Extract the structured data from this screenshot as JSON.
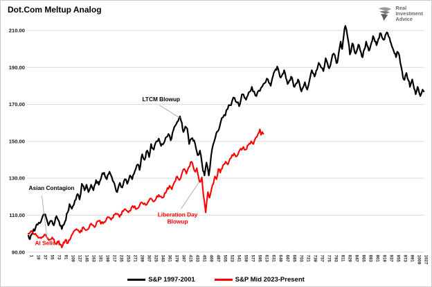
{
  "header": {
    "title": "Dot.Com Meltup Analog"
  },
  "logo": {
    "icon": "eagle-shield-icon",
    "line1": "Real",
    "line2": "Investment",
    "line3": "Advice"
  },
  "colors": {
    "background": "#ffffff",
    "grid": "#d9d9d9",
    "leader": "#a6a6a6",
    "series_1997": "#000000",
    "series_2023": "#fe0000",
    "logo_text": "#666666"
  },
  "chart_data": {
    "type": "line",
    "title": "Dot.Com Meltup Analog",
    "xlabel": "",
    "ylabel": "",
    "ylim": [
      90,
      210
    ],
    "grid": "horizontal",
    "legend_position": "bottom-center",
    "y_ticks": [
      {
        "value": 210,
        "label": "210.00"
      },
      {
        "value": 190,
        "label": "190.00"
      },
      {
        "value": 170,
        "label": "170.00"
      },
      {
        "value": 150,
        "label": "150.00"
      },
      {
        "value": 130,
        "label": "130.00"
      },
      {
        "value": 110,
        "label": "110.00"
      },
      {
        "value": 90,
        "label": "90.00"
      }
    ],
    "x_tick_labels": [
      "1",
      "19",
      "37",
      "55",
      "73",
      "91",
      "109",
      "127",
      "145",
      "163",
      "181",
      "199",
      "217",
      "235",
      "253",
      "271",
      "289",
      "307",
      "325",
      "343",
      "361",
      "379",
      "397",
      "415",
      "433",
      "451",
      "469",
      "487",
      "505",
      "523",
      "541",
      "559",
      "577",
      "595",
      "613",
      "631",
      "649",
      "667",
      "685",
      "703",
      "721",
      "739",
      "757",
      "775",
      "793",
      "811",
      "829",
      "847",
      "865",
      "883",
      "901",
      "919",
      "937",
      "955",
      "973",
      "991",
      "1009",
      "1027"
    ],
    "series": [
      {
        "name": "S&P 1997-2001",
        "color": "#000000",
        "stroke_width": 2.2,
        "jitter": 1.25,
        "seed": 7,
        "points": [
          [
            1,
            99
          ],
          [
            5,
            97
          ],
          [
            12,
            100.5
          ],
          [
            20,
            103.5
          ],
          [
            28,
            106
          ],
          [
            36,
            108
          ],
          [
            45,
            110.5
          ],
          [
            53,
            104.5
          ],
          [
            60,
            107
          ],
          [
            67,
            104.5
          ],
          [
            74,
            109.5
          ],
          [
            81,
            106.5
          ],
          [
            88,
            102.5
          ],
          [
            96,
            106.5
          ],
          [
            103,
            111.5
          ],
          [
            108,
            116
          ],
          [
            114,
            113.5
          ],
          [
            122,
            118
          ],
          [
            129,
            121.5
          ],
          [
            134,
            118.5
          ],
          [
            140,
            127
          ],
          [
            147,
            123.5
          ],
          [
            152,
            126.5
          ],
          [
            157,
            122.5
          ],
          [
            164,
            126.5
          ],
          [
            170,
            123.5
          ],
          [
            177,
            129
          ],
          [
            184,
            126.5
          ],
          [
            191,
            131
          ],
          [
            198,
            133
          ],
          [
            205,
            129.5
          ],
          [
            212,
            133.5
          ],
          [
            218,
            130.5
          ],
          [
            225,
            127
          ],
          [
            232,
            122.5
          ],
          [
            239,
            127.5
          ],
          [
            245,
            125
          ],
          [
            252,
            129.5
          ],
          [
            258,
            127
          ],
          [
            265,
            131.5
          ],
          [
            271,
            129.5
          ],
          [
            278,
            134
          ],
          [
            285,
            137.5
          ],
          [
            290,
            134.5
          ],
          [
            297,
            143
          ],
          [
            303,
            140
          ],
          [
            310,
            145
          ],
          [
            315,
            141.5
          ],
          [
            320,
            148.5
          ],
          [
            327,
            145.5
          ],
          [
            334,
            150
          ],
          [
            340,
            151.5
          ],
          [
            346,
            147.5
          ],
          [
            353,
            149
          ],
          [
            358,
            152
          ],
          [
            365,
            154
          ],
          [
            371,
            150.5
          ],
          [
            378,
            156
          ],
          [
            383,
            158.5
          ],
          [
            388,
            160.5
          ],
          [
            395,
            163.5
          ],
          [
            400,
            160
          ],
          [
            404,
            155
          ],
          [
            409,
            158
          ],
          [
            414,
            157
          ],
          [
            419,
            148.5
          ],
          [
            425,
            151.5
          ],
          [
            432,
            150.5
          ],
          [
            437,
            146
          ],
          [
            441,
            142.5
          ],
          [
            447,
            145
          ],
          [
            452,
            138.5
          ],
          [
            455,
            134
          ],
          [
            459,
            131.5
          ],
          [
            464,
            138.5
          ],
          [
            470,
            131.5
          ],
          [
            476,
            142
          ],
          [
            481,
            148
          ],
          [
            487,
            152
          ],
          [
            494,
            155.5
          ],
          [
            501,
            160.5
          ],
          [
            507,
            163
          ],
          [
            513,
            164
          ],
          [
            519,
            167.5
          ],
          [
            525,
            169.5
          ],
          [
            531,
            172
          ],
          [
            537,
            173.5
          ],
          [
            543,
            171
          ],
          [
            549,
            169
          ],
          [
            554,
            173
          ],
          [
            558,
            175.5
          ],
          [
            563,
            173.5
          ],
          [
            567,
            172.5
          ],
          [
            574,
            176.5
          ],
          [
            582,
            179.5
          ],
          [
            588,
            177
          ],
          [
            594,
            174.5
          ],
          [
            600,
            177.5
          ],
          [
            606,
            179
          ],
          [
            612,
            181
          ],
          [
            618,
            182
          ],
          [
            624,
            183.5
          ],
          [
            631,
            180
          ],
          [
            635,
            184
          ],
          [
            639,
            187
          ],
          [
            644,
            189
          ],
          [
            648,
            190.5
          ],
          [
            653,
            187
          ],
          [
            657,
            184.5
          ],
          [
            662,
            186.5
          ],
          [
            666,
            188.5
          ],
          [
            671,
            184
          ],
          [
            675,
            181
          ],
          [
            680,
            183
          ],
          [
            684,
            185
          ],
          [
            689,
            182
          ],
          [
            693,
            179.5
          ],
          [
            698,
            181.5
          ],
          [
            702,
            183.5
          ],
          [
            707,
            180
          ],
          [
            711,
            177
          ],
          [
            716,
            179.5
          ],
          [
            720,
            182
          ],
          [
            726,
            178
          ],
          [
            732,
            183
          ],
          [
            738,
            188.5
          ],
          [
            743,
            186.5
          ],
          [
            747,
            186
          ],
          [
            752,
            189
          ],
          [
            756,
            192.5
          ],
          [
            762,
            190
          ],
          [
            768,
            188
          ],
          [
            771,
            191
          ],
          [
            774,
            195
          ],
          [
            779,
            192
          ],
          [
            783,
            189.5
          ],
          [
            789,
            194
          ],
          [
            795,
            197.5
          ],
          [
            800,
            194.5
          ],
          [
            804,
            192.5
          ],
          [
            808,
            198
          ],
          [
            813,
            204
          ],
          [
            817,
            200
          ],
          [
            821,
            207.5
          ],
          [
            825,
            212.5
          ],
          [
            828,
            210.5
          ],
          [
            833,
            204
          ],
          [
            837,
            197
          ],
          [
            843,
            203
          ],
          [
            848,
            199.5
          ],
          [
            852,
            197.5
          ],
          [
            857,
            200.5
          ],
          [
            861,
            202
          ],
          [
            866,
            198
          ],
          [
            870,
            195.5
          ],
          [
            875,
            200
          ],
          [
            879,
            204
          ],
          [
            884,
            201
          ],
          [
            888,
            199.5
          ],
          [
            893,
            203.5
          ],
          [
            897,
            207
          ],
          [
            902,
            204
          ],
          [
            906,
            202
          ],
          [
            911,
            205.5
          ],
          [
            915,
            208.5
          ],
          [
            920,
            206.5
          ],
          [
            924,
            205
          ],
          [
            929,
            207.5
          ],
          [
            933,
            209
          ],
          [
            937,
            207
          ],
          [
            940,
            206
          ],
          [
            944,
            203
          ],
          [
            948,
            200.5
          ],
          [
            953,
            197.5
          ],
          [
            957,
            195.5
          ],
          [
            960,
            198.5
          ],
          [
            963,
            198
          ],
          [
            968,
            192.5
          ],
          [
            973,
            187.5
          ],
          [
            977,
            183.5
          ],
          [
            981,
            185.5
          ],
          [
            984,
            187
          ],
          [
            989,
            183
          ],
          [
            993,
            179.5
          ],
          [
            996,
            181.5
          ],
          [
            999,
            183.5
          ],
          [
            1004,
            178.5
          ],
          [
            1008,
            175.5
          ],
          [
            1011,
            177.5
          ],
          [
            1013,
            179.5
          ],
          [
            1017,
            176.5
          ],
          [
            1020,
            174.5
          ],
          [
            1023,
            176
          ],
          [
            1026,
            178
          ],
          [
            1029,
            177
          ]
        ]
      },
      {
        "name": "S&P Mid 2023-Present",
        "color": "#fe0000",
        "stroke_width": 2.1,
        "jitter": 0.95,
        "seed": 13,
        "points": [
          [
            1,
            100
          ],
          [
            10,
            101.5
          ],
          [
            22,
            99
          ],
          [
            34,
            97.5
          ],
          [
            43,
            99.5
          ],
          [
            54,
            96.5
          ],
          [
            63,
            98
          ],
          [
            72,
            94.5
          ],
          [
            80,
            96
          ],
          [
            88,
            92.5
          ],
          [
            97,
            96.5
          ],
          [
            104,
            95
          ],
          [
            113,
            99
          ],
          [
            126,
            102.5
          ],
          [
            135,
            100.5
          ],
          [
            144,
            103.5
          ],
          [
            153,
            102
          ],
          [
            164,
            105.5
          ],
          [
            173,
            103.5
          ],
          [
            184,
            107
          ],
          [
            195,
            105.5
          ],
          [
            207,
            109
          ],
          [
            216,
            107.5
          ],
          [
            228,
            111
          ],
          [
            238,
            109
          ],
          [
            250,
            113
          ],
          [
            261,
            111.5
          ],
          [
            272,
            115
          ],
          [
            283,
            113.5
          ],
          [
            295,
            117
          ],
          [
            306,
            115.5
          ],
          [
            317,
            119
          ],
          [
            328,
            117.5
          ],
          [
            340,
            121
          ],
          [
            351,
            119.5
          ],
          [
            360,
            123
          ],
          [
            368,
            126
          ],
          [
            374,
            124
          ],
          [
            381,
            128
          ],
          [
            388,
            131
          ],
          [
            394,
            129
          ],
          [
            400,
            132.5
          ],
          [
            407,
            135
          ],
          [
            412,
            132.5
          ],
          [
            418,
            136
          ],
          [
            425,
            139
          ],
          [
            430,
            136
          ],
          [
            435,
            133.5
          ],
          [
            439,
            135.5
          ],
          [
            444,
            130
          ],
          [
            448,
            128
          ],
          [
            452,
            130.5
          ],
          [
            456,
            121
          ],
          [
            459,
            117
          ],
          [
            462,
            111.5
          ],
          [
            465,
            118
          ],
          [
            468,
            122.5
          ],
          [
            472,
            119.5
          ],
          [
            477,
            124
          ],
          [
            482,
            127
          ],
          [
            486,
            131
          ],
          [
            490,
            129.5
          ],
          [
            495,
            135
          ],
          [
            500,
            133
          ],
          [
            507,
            137
          ],
          [
            514,
            139
          ],
          [
            520,
            137.5
          ],
          [
            528,
            141
          ],
          [
            536,
            143.5
          ],
          [
            543,
            142
          ],
          [
            551,
            145.5
          ],
          [
            560,
            147
          ],
          [
            566,
            145.5
          ],
          [
            573,
            148
          ],
          [
            580,
            150
          ],
          [
            586,
            148.5
          ],
          [
            592,
            152
          ],
          [
            598,
            154
          ],
          [
            603,
            156.5
          ],
          [
            606,
            153.5
          ],
          [
            609,
            155
          ],
          [
            612,
            154
          ]
        ]
      }
    ],
    "annotations": [
      {
        "text": "Asian Contagion",
        "color": "#000000",
        "align": "left",
        "anchor_day": 2,
        "anchor_value": 126,
        "leader": {
          "from": [
            36,
            120.5
          ],
          "to": [
            50,
            96.6
          ]
        }
      },
      {
        "text": "AI Selloff",
        "color": "#fe0000",
        "align": "left",
        "anchor_day": 18,
        "anchor_value": 96
      },
      {
        "text": "LTCM Blowup",
        "color": "#000000",
        "align": "left",
        "anchor_day": 297,
        "anchor_value": 174,
        "leader": {
          "from": [
            342,
            169.5
          ],
          "to": [
            396,
            162.5
          ]
        }
      },
      {
        "text": "Liberation Day\nBlowup",
        "color": "#fe0000",
        "align": "center",
        "anchor_day": 389,
        "anchor_value": 111.5,
        "leader": {
          "from": [
            398,
            113.5
          ],
          "to": [
            445,
            128
          ]
        }
      }
    ]
  }
}
